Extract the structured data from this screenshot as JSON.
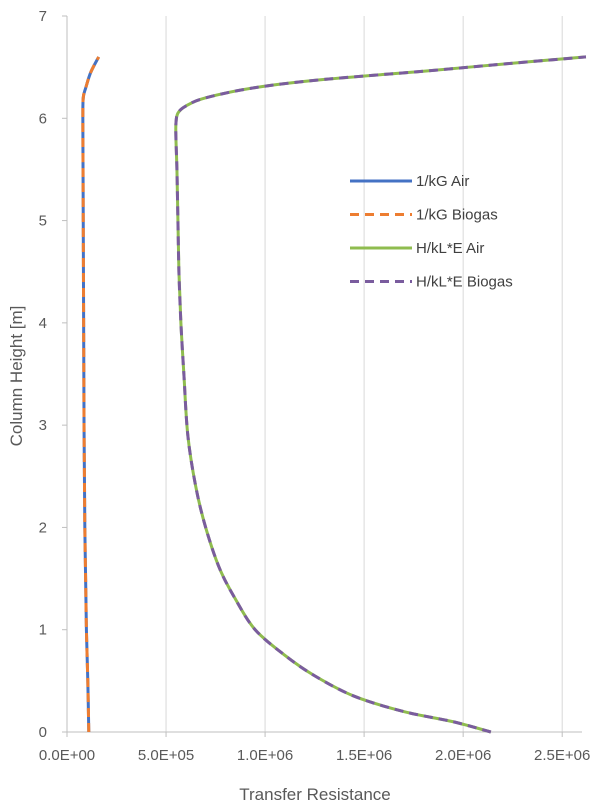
{
  "chart_data": {
    "type": "scatter",
    "mode": "smooth-lines",
    "xlabel": "Transfer Resistance",
    "ylabel": "Column Height [m]",
    "xlim": [
      0,
      2600000
    ],
    "ylim": [
      0,
      7
    ],
    "x_ticks": [
      0,
      500000,
      1000000,
      1500000,
      2000000,
      2500000
    ],
    "x_tick_labels": [
      "0.0E+00",
      "5.0E+05",
      "1.0E+06",
      "1.5E+06",
      "2.0E+06",
      "2.5E+06"
    ],
    "y_ticks": [
      0,
      1,
      2,
      3,
      4,
      5,
      6,
      7
    ],
    "y_tick_labels": [
      "0",
      "1",
      "2",
      "3",
      "4",
      "5",
      "6",
      "7"
    ],
    "grid": "vertical",
    "legend_position": "right-middle",
    "series": [
      {
        "name": "1/kG Air",
        "color": "#4472C4",
        "dash": "solid",
        "points": [
          [
            110000,
            0
          ],
          [
            105000,
            0.5
          ],
          [
            98000,
            1.0
          ],
          [
            94000,
            1.5
          ],
          [
            90000,
            2.0
          ],
          [
            88000,
            2.5
          ],
          [
            86000,
            3.0
          ],
          [
            85000,
            3.5
          ],
          [
            84000,
            4.0
          ],
          [
            83000,
            4.5
          ],
          [
            82000,
            5.0
          ],
          [
            81000,
            5.5
          ],
          [
            80000,
            6.0
          ],
          [
            82000,
            6.2
          ],
          [
            95000,
            6.3
          ],
          [
            120000,
            6.45
          ],
          [
            160000,
            6.6
          ]
        ]
      },
      {
        "name": "1/kG Biogas",
        "color": "#ED7D31",
        "dash": "dashed",
        "points": [
          [
            110000,
            0
          ],
          [
            105000,
            0.5
          ],
          [
            98000,
            1.0
          ],
          [
            94000,
            1.5
          ],
          [
            90000,
            2.0
          ],
          [
            88000,
            2.5
          ],
          [
            86000,
            3.0
          ],
          [
            85000,
            3.5
          ],
          [
            84000,
            4.0
          ],
          [
            83000,
            4.5
          ],
          [
            82000,
            5.0
          ],
          [
            81000,
            5.5
          ],
          [
            80000,
            6.0
          ],
          [
            82000,
            6.2
          ],
          [
            95000,
            6.3
          ],
          [
            120000,
            6.45
          ],
          [
            160000,
            6.6
          ]
        ]
      },
      {
        "name": "H/kL*E Air",
        "color": "#8FBC4F",
        "dash": "solid",
        "points": [
          [
            2140000,
            0
          ],
          [
            1950000,
            0.1
          ],
          [
            1700000,
            0.2
          ],
          [
            1450000,
            0.35
          ],
          [
            1250000,
            0.55
          ],
          [
            1100000,
            0.75
          ],
          [
            950000,
            1.0
          ],
          [
            850000,
            1.3
          ],
          [
            770000,
            1.6
          ],
          [
            700000,
            2.0
          ],
          [
            650000,
            2.4
          ],
          [
            610000,
            2.9
          ],
          [
            590000,
            3.5
          ],
          [
            575000,
            4.0
          ],
          [
            565000,
            4.5
          ],
          [
            560000,
            5.0
          ],
          [
            555000,
            5.5
          ],
          [
            550000,
            5.8
          ],
          [
            550000,
            5.95
          ],
          [
            560000,
            6.05
          ],
          [
            600000,
            6.12
          ],
          [
            700000,
            6.2
          ],
          [
            950000,
            6.3
          ],
          [
            1300000,
            6.38
          ],
          [
            1800000,
            6.46
          ],
          [
            2200000,
            6.53
          ],
          [
            2620000,
            6.6
          ]
        ]
      },
      {
        "name": "H/kL*E Biogas",
        "color": "#7A5C9E",
        "dash": "dashed",
        "points": [
          [
            2140000,
            0
          ],
          [
            1950000,
            0.1
          ],
          [
            1700000,
            0.2
          ],
          [
            1450000,
            0.35
          ],
          [
            1250000,
            0.55
          ],
          [
            1100000,
            0.75
          ],
          [
            950000,
            1.0
          ],
          [
            850000,
            1.3
          ],
          [
            770000,
            1.6
          ],
          [
            700000,
            2.0
          ],
          [
            650000,
            2.4
          ],
          [
            610000,
            2.9
          ],
          [
            590000,
            3.5
          ],
          [
            575000,
            4.0
          ],
          [
            565000,
            4.5
          ],
          [
            560000,
            5.0
          ],
          [
            555000,
            5.5
          ],
          [
            550000,
            5.8
          ],
          [
            550000,
            5.95
          ],
          [
            560000,
            6.05
          ],
          [
            600000,
            6.12
          ],
          [
            700000,
            6.2
          ],
          [
            950000,
            6.3
          ],
          [
            1300000,
            6.38
          ],
          [
            1800000,
            6.46
          ],
          [
            2200000,
            6.53
          ],
          [
            2620000,
            6.6
          ]
        ]
      }
    ]
  }
}
